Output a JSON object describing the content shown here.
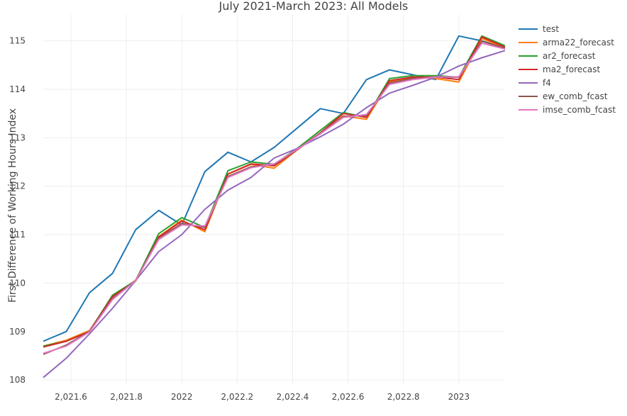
{
  "chart_data": {
    "type": "line",
    "title": "July 2021-March 2023: All Models",
    "xlabel": "",
    "ylabel": "First Difference of Working Hours Index",
    "xlim": [
      2021.5,
      2023.1667
    ],
    "ylim": [
      107.9,
      115.55
    ],
    "x_ticks": [
      2021.6,
      2021.8,
      2022,
      2022.2,
      2022.4,
      2022.6,
      2022.8,
      2023
    ],
    "x_tick_labels": [
      "2,021.6",
      "2,021.8",
      "2022",
      "2,022.2",
      "2,022.4",
      "2,022.6",
      "2,022.8",
      "2023"
    ],
    "y_ticks": [
      108,
      109,
      110,
      111,
      112,
      113,
      114,
      115
    ],
    "y_tick_labels": [
      "108",
      "109",
      "110",
      "111",
      "112",
      "113",
      "114",
      "115"
    ],
    "grid": true,
    "legend_position": "right",
    "x": [
      2021.5,
      2021.5833,
      2021.6667,
      2021.75,
      2021.8333,
      2021.9167,
      2022.0,
      2022.0833,
      2022.1667,
      2022.25,
      2022.3333,
      2022.4167,
      2022.5,
      2022.5833,
      2022.6667,
      2022.75,
      2022.8333,
      2022.9167,
      2023.0,
      2023.0833,
      2023.1667
    ],
    "series": [
      {
        "name": "test",
        "color": "#1f77b4",
        "values": [
          108.8,
          109.0,
          109.8,
          110.2,
          111.1,
          111.5,
          111.2,
          112.3,
          112.7,
          112.5,
          112.8,
          113.2,
          113.6,
          113.5,
          114.2,
          114.4,
          114.3,
          114.2,
          115.1,
          115.0,
          114.85
        ]
      },
      {
        "name": "arma22_forecast",
        "color": "#ff7f0e",
        "values": [
          108.7,
          108.82,
          109.02,
          109.72,
          110.06,
          110.96,
          111.3,
          111.06,
          112.25,
          112.45,
          112.37,
          112.75,
          113.1,
          113.45,
          113.38,
          114.15,
          114.25,
          114.22,
          114.15,
          115.05,
          114.85
        ]
      },
      {
        "name": "ar2_forecast",
        "color": "#2ca02c",
        "values": [
          108.7,
          108.8,
          109.0,
          109.75,
          110.05,
          111.02,
          111.35,
          111.15,
          112.32,
          112.5,
          112.45,
          112.78,
          113.15,
          113.52,
          113.42,
          114.22,
          114.28,
          114.28,
          114.25,
          115.1,
          114.9
        ]
      },
      {
        "name": "ma2_forecast",
        "color": "#d62728",
        "values": [
          108.68,
          108.8,
          109.0,
          109.72,
          110.04,
          110.95,
          111.28,
          111.1,
          112.25,
          112.46,
          112.42,
          112.75,
          113.1,
          113.5,
          113.42,
          114.18,
          114.25,
          114.25,
          114.2,
          115.08,
          114.87
        ]
      },
      {
        "name": "f4",
        "color": "#9467bd",
        "values": [
          108.05,
          108.45,
          108.95,
          109.48,
          110.05,
          110.65,
          111.0,
          111.52,
          111.92,
          112.18,
          112.58,
          112.78,
          113.02,
          113.28,
          113.62,
          113.92,
          114.08,
          114.25,
          114.48,
          114.65,
          114.8
        ]
      },
      {
        "name": "ew_comb_fcast",
        "color": "#8c564b",
        "values": [
          108.53,
          108.72,
          109.0,
          109.68,
          110.05,
          110.92,
          111.23,
          111.15,
          112.2,
          112.4,
          112.45,
          112.76,
          113.09,
          113.44,
          113.46,
          114.13,
          114.22,
          114.25,
          114.25,
          114.99,
          114.85
        ]
      },
      {
        "name": "imse_comb_fcast",
        "color": "#e377c2",
        "values": [
          108.55,
          108.7,
          108.99,
          109.66,
          110.05,
          110.9,
          111.2,
          111.18,
          112.18,
          112.38,
          112.46,
          112.76,
          113.08,
          113.42,
          113.48,
          114.1,
          114.2,
          114.25,
          114.26,
          114.95,
          114.83
        ]
      }
    ]
  }
}
